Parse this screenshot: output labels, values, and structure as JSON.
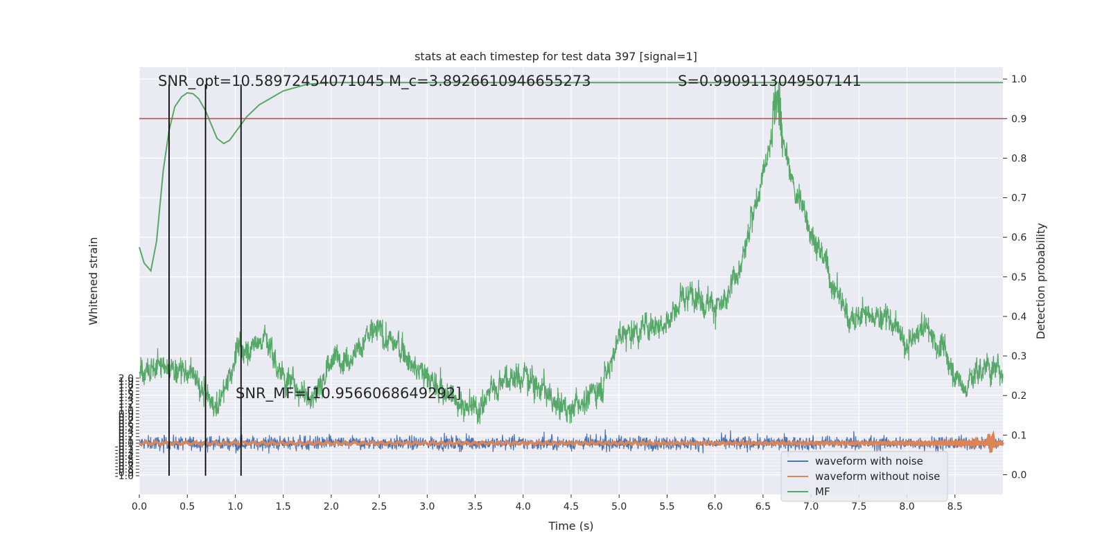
{
  "chart_data": {
    "type": "line",
    "title": "stats at each timestep for test data 397 [signal=1]",
    "xlabel": "Time (s)",
    "ylabel_left": "Whitened strain",
    "ylabel_right": "Detection probability",
    "xlim": [
      0,
      9
    ],
    "xticks": [
      "0.0",
      "0.5",
      "1.0",
      "1.5",
      "2.0",
      "2.5",
      "3.0",
      "3.5",
      "4.0",
      "4.5",
      "5.0",
      "5.5",
      "6.0",
      "6.5",
      "7.0",
      "7.5",
      "8.0",
      "8.5"
    ],
    "ylim_left": [
      -1.0,
      2.0
    ],
    "yticks_left": [
      "-1.0",
      "-0.9",
      "-0.8",
      "-0.7",
      "-0.6",
      "-0.5",
      "-0.4",
      "-0.3",
      "-0.2",
      "-0.1",
      "0.0",
      "0.1",
      "0.2",
      "0.3",
      "0.4",
      "0.5",
      "0.6",
      "0.7",
      "0.8",
      "0.9",
      "1.0",
      "1.1",
      "1.2",
      "1.3",
      "1.4",
      "1.5",
      "1.6",
      "1.7",
      "1.8",
      "1.9",
      "2.0"
    ],
    "ylim_right": [
      -0.05,
      1.03
    ],
    "yticks_right": [
      "0.0",
      "0.1",
      "0.2",
      "0.3",
      "0.4",
      "0.5",
      "0.6",
      "0.7",
      "0.8",
      "0.9",
      "1.0"
    ],
    "threshold": 0.9,
    "vlines": [
      0.31,
      0.69,
      1.06
    ],
    "annotations": {
      "snr_opt": "SNR_opt=10.58972454071045",
      "mc": "M_c=3.8926610946655273",
      "s": "S=0.9909113049507141",
      "snr_mf": "SNR_MF=[10.9566068649292]"
    },
    "legend": {
      "placement": "lower-right",
      "entries": [
        "waveform with noise",
        "waveform without noise",
        "MF"
      ]
    },
    "series": [
      {
        "name": "waveform with noise",
        "axis": "left",
        "color": "#4c72b0",
        "kind": "noise",
        "center": 0.0,
        "amplitude": 0.22
      },
      {
        "name": "waveform without noise",
        "axis": "left",
        "color": "#dd8452",
        "kind": "chirp",
        "merger_time": 8.9
      },
      {
        "name": "MF",
        "axis": "right",
        "color": "#55a868",
        "kind": "noisy-envelope",
        "envelope": [
          [
            0,
            0.27
          ],
          [
            0.3,
            0.27
          ],
          [
            0.5,
            0.26
          ],
          [
            0.7,
            0.2
          ],
          [
            0.8,
            0.16
          ],
          [
            1.0,
            0.3
          ],
          [
            1.3,
            0.35
          ],
          [
            1.5,
            0.25
          ],
          [
            1.8,
            0.2
          ],
          [
            2.0,
            0.28
          ],
          [
            2.5,
            0.36
          ],
          [
            2.8,
            0.3
          ],
          [
            3.1,
            0.22
          ],
          [
            3.5,
            0.16
          ],
          [
            3.8,
            0.25
          ],
          [
            4.1,
            0.25
          ],
          [
            4.3,
            0.18
          ],
          [
            4.5,
            0.17
          ],
          [
            4.8,
            0.22
          ],
          [
            5.0,
            0.35
          ],
          [
            5.5,
            0.4
          ],
          [
            5.8,
            0.46
          ],
          [
            6.1,
            0.42
          ],
          [
            6.3,
            0.55
          ],
          [
            6.5,
            0.78
          ],
          [
            6.65,
            0.9
          ],
          [
            6.8,
            0.74
          ],
          [
            7.0,
            0.62
          ],
          [
            7.2,
            0.5
          ],
          [
            7.4,
            0.4
          ],
          [
            7.8,
            0.4
          ],
          [
            8.0,
            0.32
          ],
          [
            8.2,
            0.38
          ],
          [
            8.4,
            0.3
          ],
          [
            8.6,
            0.22
          ],
          [
            8.8,
            0.28
          ],
          [
            9.0,
            0.26
          ]
        ]
      },
      {
        "name": "Detection probability",
        "axis": "right",
        "color": "#55a868",
        "kind": "line",
        "x": [
          0,
          0.05,
          0.12,
          0.18,
          0.25,
          0.31,
          0.37,
          0.44,
          0.5,
          0.56,
          0.62,
          0.69,
          0.75,
          0.81,
          0.88,
          0.94,
          1.0,
          1.06,
          1.12,
          1.25,
          1.5,
          1.75,
          2.0,
          3.0,
          5.0,
          7.0,
          9.0
        ],
        "y": [
          0.575,
          0.535,
          0.515,
          0.59,
          0.77,
          0.87,
          0.93,
          0.955,
          0.965,
          0.963,
          0.95,
          0.92,
          0.885,
          0.85,
          0.837,
          0.845,
          0.865,
          0.885,
          0.905,
          0.935,
          0.97,
          0.987,
          0.991,
          0.991,
          0.991,
          0.991,
          0.991
        ]
      }
    ]
  }
}
